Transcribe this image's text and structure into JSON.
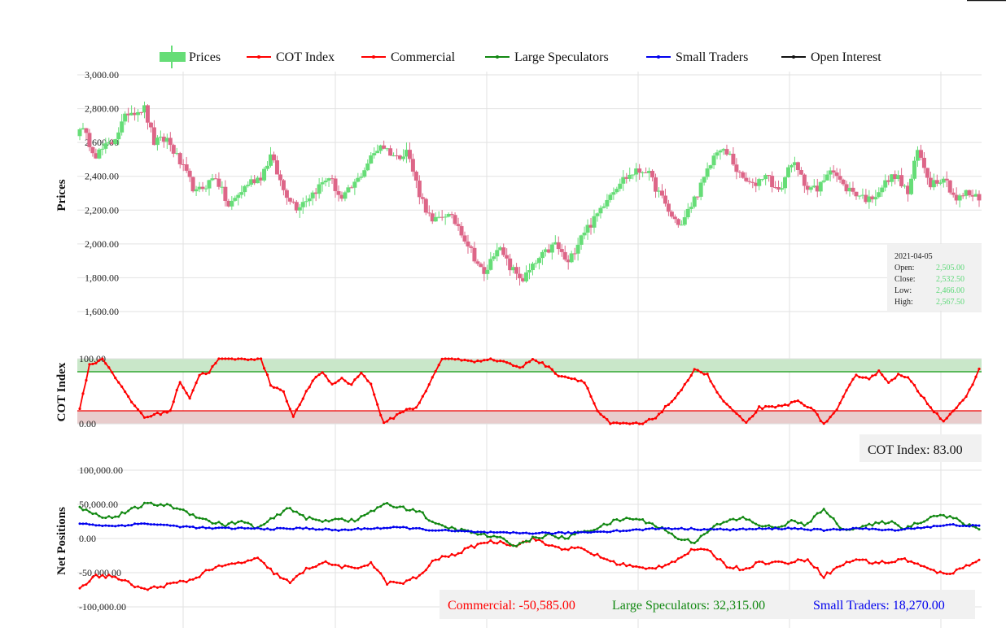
{
  "legend": [
    {
      "label": "Prices",
      "color": "#66dd77",
      "kind": "box"
    },
    {
      "label": "COT Index",
      "color": "#ff0000",
      "kind": "line"
    },
    {
      "label": "Commercial",
      "color": "#ff0000",
      "kind": "line"
    },
    {
      "label": "Large Speculators",
      "color": "#118811",
      "kind": "line"
    },
    {
      "label": "Small Traders",
      "color": "#0000ee",
      "kind": "line"
    },
    {
      "label": "Open Interest",
      "color": "#111111",
      "kind": "line"
    }
  ],
  "colors": {
    "up": "#66dd77",
    "down": "#dd6688",
    "cot": "#ff0000",
    "commercial": "#ff0000",
    "large": "#118811",
    "small": "#0000ee",
    "green_zone": "#c9e7c9",
    "red_zone": "#e8cccc"
  },
  "tooltip": {
    "date": "2021-04-05",
    "rows": [
      {
        "label": "Open:",
        "value": "2,505.00"
      },
      {
        "label": "Close:",
        "value": "2,532.50"
      },
      {
        "label": "Low:",
        "value": "2,466.00"
      },
      {
        "label": "High:",
        "value": "2,567.50"
      }
    ]
  },
  "cot_box": {
    "label": "COT Index:",
    "value": "83.00"
  },
  "np_box": [
    {
      "label": "Commercial:",
      "value": "-50,585.00",
      "color": "#ff0000"
    },
    {
      "label": "Large Speculators:",
      "value": "32,315.00",
      "color": "#118811"
    },
    {
      "label": "Small Traders:",
      "value": "18,270.00",
      "color": "#0000ee"
    }
  ],
  "chart_data": [
    {
      "type": "candlestick",
      "ylabel": "Prices",
      "ylim": [
        1600,
        3000
      ],
      "yticks": [
        "3,000.00",
        "2,800.00",
        "2,600.00",
        "2,400.00",
        "2,200.00",
        "2,000.00",
        "1,800.00",
        "1,600.00"
      ],
      "ytick_values": [
        3000,
        2800,
        2600,
        2400,
        2200,
        2000,
        1800,
        1600
      ],
      "close_anchors": [
        [
          0,
          2700
        ],
        [
          5,
          2530
        ],
        [
          10,
          2600
        ],
        [
          15,
          2780
        ],
        [
          20,
          2800
        ],
        [
          23,
          2600
        ],
        [
          27,
          2620
        ],
        [
          31,
          2480
        ],
        [
          36,
          2300
        ],
        [
          42,
          2400
        ],
        [
          46,
          2220
        ],
        [
          52,
          2360
        ],
        [
          56,
          2400
        ],
        [
          59,
          2520
        ],
        [
          63,
          2320
        ],
        [
          67,
          2220
        ],
        [
          72,
          2300
        ],
        [
          77,
          2400
        ],
        [
          81,
          2260
        ],
        [
          86,
          2380
        ],
        [
          89,
          2480
        ],
        [
          93,
          2590
        ],
        [
          98,
          2510
        ],
        [
          101,
          2560
        ],
        [
          105,
          2300
        ],
        [
          109,
          2120
        ],
        [
          113,
          2180
        ],
        [
          117,
          2110
        ],
        [
          121,
          1960
        ],
        [
          125,
          1810
        ],
        [
          129,
          1990
        ],
        [
          133,
          1860
        ],
        [
          137,
          1790
        ],
        [
          142,
          1910
        ],
        [
          147,
          2000
        ],
        [
          151,
          1880
        ],
        [
          155,
          2060
        ],
        [
          159,
          2140
        ],
        [
          163,
          2280
        ],
        [
          167,
          2370
        ],
        [
          171,
          2420
        ],
        [
          175,
          2440
        ],
        [
          179,
          2300
        ],
        [
          183,
          2160
        ],
        [
          186,
          2110
        ],
        [
          189,
          2230
        ],
        [
          193,
          2380
        ],
        [
          197,
          2560
        ],
        [
          201,
          2520
        ],
        [
          204,
          2400
        ],
        [
          208,
          2340
        ],
        [
          212,
          2420
        ],
        [
          216,
          2300
        ],
        [
          220,
          2490
        ],
        [
          224,
          2360
        ],
        [
          228,
          2310
        ],
        [
          232,
          2460
        ],
        [
          236,
          2340
        ],
        [
          240,
          2300
        ],
        [
          244,
          2260
        ],
        [
          248,
          2340
        ],
        [
          252,
          2410
        ],
        [
          256,
          2300
        ],
        [
          259,
          2550
        ],
        [
          263,
          2360
        ],
        [
          267,
          2400
        ],
        [
          271,
          2260
        ],
        [
          274,
          2300
        ],
        [
          278,
          2270
        ]
      ],
      "volatility": 55
    },
    {
      "type": "line",
      "ylabel": "COT Index",
      "ylim": [
        0,
        100
      ],
      "yticks": [
        "100.00",
        "0.00"
      ],
      "ytick_values": [
        100,
        0
      ],
      "upper_threshold": 80,
      "lower_threshold": 20,
      "anchors": [
        [
          0,
          25
        ],
        [
          3,
          90
        ],
        [
          7,
          100
        ],
        [
          10,
          80
        ],
        [
          15,
          40
        ],
        [
          20,
          10
        ],
        [
          24,
          15
        ],
        [
          28,
          20
        ],
        [
          31,
          65
        ],
        [
          34,
          40
        ],
        [
          37,
          75
        ],
        [
          40,
          80
        ],
        [
          43,
          100
        ],
        [
          48,
          100
        ],
        [
          52,
          100
        ],
        [
          56,
          100
        ],
        [
          59,
          60
        ],
        [
          63,
          50
        ],
        [
          66,
          10
        ],
        [
          69,
          40
        ],
        [
          72,
          65
        ],
        [
          75,
          80
        ],
        [
          78,
          60
        ],
        [
          81,
          70
        ],
        [
          84,
          60
        ],
        [
          87,
          80
        ],
        [
          90,
          60
        ],
        [
          94,
          0
        ],
        [
          97,
          10
        ],
        [
          100,
          20
        ],
        [
          104,
          25
        ],
        [
          108,
          60
        ],
        [
          112,
          100
        ],
        [
          117,
          100
        ],
        [
          121,
          95
        ],
        [
          126,
          100
        ],
        [
          132,
          95
        ],
        [
          136,
          85
        ],
        [
          140,
          100
        ],
        [
          144,
          90
        ],
        [
          148,
          75
        ],
        [
          152,
          70
        ],
        [
          156,
          65
        ],
        [
          160,
          20
        ],
        [
          164,
          0
        ],
        [
          170,
          0
        ],
        [
          174,
          0
        ],
        [
          178,
          10
        ],
        [
          182,
          30
        ],
        [
          186,
          50
        ],
        [
          190,
          85
        ],
        [
          194,
          75
        ],
        [
          198,
          40
        ],
        [
          202,
          20
        ],
        [
          206,
          0
        ],
        [
          210,
          25
        ],
        [
          215,
          25
        ],
        [
          219,
          30
        ],
        [
          222,
          35
        ],
        [
          226,
          25
        ],
        [
          230,
          0
        ],
        [
          234,
          20
        ],
        [
          237,
          50
        ],
        [
          240,
          75
        ],
        [
          244,
          70
        ],
        [
          247,
          80
        ],
        [
          250,
          65
        ],
        [
          253,
          75
        ],
        [
          256,
          70
        ],
        [
          260,
          45
        ],
        [
          264,
          20
        ],
        [
          267,
          5
        ],
        [
          270,
          20
        ],
        [
          274,
          40
        ],
        [
          278,
          83
        ]
      ]
    },
    {
      "type": "line",
      "ylabel": "Net Positions",
      "ylim": [
        -100000,
        100000
      ],
      "yticks": [
        "100,000.00",
        "50,000.00",
        "0.00",
        "-50,000.00",
        "-100,000.00"
      ],
      "ytick_values": [
        100000,
        50000,
        0,
        -50000,
        -100000
      ],
      "series": [
        {
          "name": "Commercial",
          "anchors": [
            [
              0,
              -72000
            ],
            [
              5,
              -55000
            ],
            [
              10,
              -55000
            ],
            [
              15,
              -65000
            ],
            [
              20,
              -75000
            ],
            [
              25,
              -70000
            ],
            [
              30,
              -65000
            ],
            [
              35,
              -60000
            ],
            [
              40,
              -45000
            ],
            [
              45,
              -40000
            ],
            [
              50,
              -35000
            ],
            [
              55,
              -30000
            ],
            [
              60,
              -50000
            ],
            [
              65,
              -65000
            ],
            [
              70,
              -45000
            ],
            [
              75,
              -35000
            ],
            [
              80,
              -40000
            ],
            [
              85,
              -45000
            ],
            [
              90,
              -35000
            ],
            [
              95,
              -65000
            ],
            [
              100,
              -65000
            ],
            [
              105,
              -55000
            ],
            [
              110,
              -30000
            ],
            [
              115,
              -25000
            ],
            [
              120,
              -15000
            ],
            [
              125,
              -5000
            ],
            [
              130,
              -5000
            ],
            [
              135,
              -10000
            ],
            [
              140,
              0
            ],
            [
              145,
              -10000
            ],
            [
              150,
              -15000
            ],
            [
              155,
              -15000
            ],
            [
              160,
              -25000
            ],
            [
              165,
              -35000
            ],
            [
              170,
              -40000
            ],
            [
              175,
              -45000
            ],
            [
              180,
              -40000
            ],
            [
              185,
              -30000
            ],
            [
              190,
              -15000
            ],
            [
              195,
              -20000
            ],
            [
              200,
              -40000
            ],
            [
              205,
              -45000
            ],
            [
              210,
              -35000
            ],
            [
              215,
              -35000
            ],
            [
              220,
              -35000
            ],
            [
              225,
              -30000
            ],
            [
              230,
              -55000
            ],
            [
              235,
              -40000
            ],
            [
              240,
              -30000
            ],
            [
              245,
              -35000
            ],
            [
              250,
              -35000
            ],
            [
              255,
              -30000
            ],
            [
              260,
              -40000
            ],
            [
              265,
              -50000
            ],
            [
              270,
              -50000
            ],
            [
              274,
              -40000
            ],
            [
              278,
              -30000
            ]
          ]
        },
        {
          "name": "Large Speculators",
          "anchors": [
            [
              0,
              45000
            ],
            [
              5,
              35000
            ],
            [
              10,
              30000
            ],
            [
              15,
              40000
            ],
            [
              20,
              50000
            ],
            [
              25,
              50000
            ],
            [
              30,
              45000
            ],
            [
              35,
              35000
            ],
            [
              40,
              25000
            ],
            [
              45,
              20000
            ],
            [
              50,
              25000
            ],
            [
              55,
              15000
            ],
            [
              60,
              30000
            ],
            [
              65,
              45000
            ],
            [
              70,
              30000
            ],
            [
              75,
              25000
            ],
            [
              80,
              30000
            ],
            [
              85,
              25000
            ],
            [
              90,
              40000
            ],
            [
              95,
              50000
            ],
            [
              100,
              45000
            ],
            [
              105,
              40000
            ],
            [
              110,
              20000
            ],
            [
              115,
              15000
            ],
            [
              120,
              10000
            ],
            [
              125,
              5000
            ],
            [
              130,
              0
            ],
            [
              135,
              -10000
            ],
            [
              140,
              0
            ],
            [
              145,
              5000
            ],
            [
              150,
              0
            ],
            [
              155,
              10000
            ],
            [
              160,
              15000
            ],
            [
              165,
              25000
            ],
            [
              170,
              30000
            ],
            [
              175,
              25000
            ],
            [
              180,
              15000
            ],
            [
              185,
              0
            ],
            [
              190,
              -5000
            ],
            [
              195,
              15000
            ],
            [
              200,
              25000
            ],
            [
              205,
              30000
            ],
            [
              210,
              20000
            ],
            [
              215,
              15000
            ],
            [
              220,
              25000
            ],
            [
              225,
              20000
            ],
            [
              230,
              45000
            ],
            [
              235,
              15000
            ],
            [
              240,
              15000
            ],
            [
              245,
              20000
            ],
            [
              250,
              25000
            ],
            [
              255,
              15000
            ],
            [
              260,
              25000
            ],
            [
              265,
              35000
            ],
            [
              270,
              30000
            ],
            [
              274,
              20000
            ],
            [
              278,
              15000
            ]
          ]
        },
        {
          "name": "Small Traders",
          "anchors": [
            [
              0,
              22000
            ],
            [
              10,
              18000
            ],
            [
              20,
              22000
            ],
            [
              30,
              18000
            ],
            [
              40,
              15000
            ],
            [
              50,
              15000
            ],
            [
              60,
              14000
            ],
            [
              70,
              15000
            ],
            [
              80,
              12000
            ],
            [
              90,
              15000
            ],
            [
              100,
              16000
            ],
            [
              110,
              12000
            ],
            [
              120,
              10000
            ],
            [
              130,
              8000
            ],
            [
              140,
              8000
            ],
            [
              150,
              8000
            ],
            [
              160,
              10000
            ],
            [
              170,
              12000
            ],
            [
              180,
              15000
            ],
            [
              190,
              14000
            ],
            [
              200,
              13000
            ],
            [
              210,
              14000
            ],
            [
              220,
              15000
            ],
            [
              230,
              12000
            ],
            [
              240,
              15000
            ],
            [
              250,
              12000
            ],
            [
              260,
              16000
            ],
            [
              270,
              20000
            ],
            [
              278,
              18000
            ]
          ]
        }
      ]
    }
  ]
}
